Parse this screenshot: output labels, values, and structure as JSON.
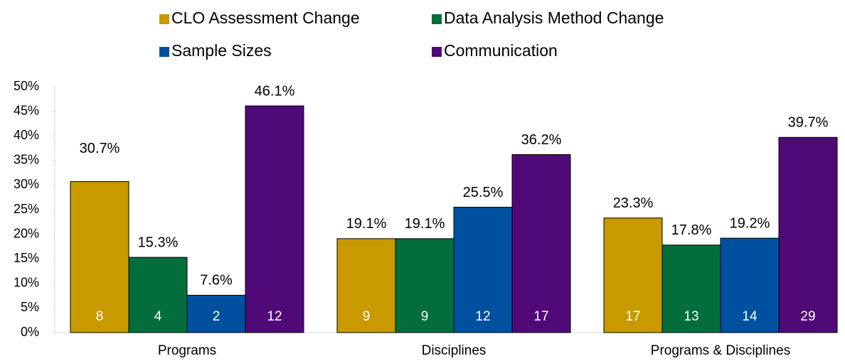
{
  "chart_data": {
    "type": "bar",
    "categories": [
      "Programs",
      "Disciplines",
      "Programs & Disciplines"
    ],
    "series": [
      {
        "name": "CLO Assessment Change",
        "color": "#c99a00",
        "values": [
          30.7,
          19.1,
          23.3
        ],
        "value_labels": [
          "30.7%",
          "19.1%",
          "23.3%"
        ],
        "counts": [
          8,
          9,
          17
        ]
      },
      {
        "name": "Data Analysis Method Change",
        "color": "#036e3b",
        "values": [
          15.3,
          19.1,
          17.8
        ],
        "value_labels": [
          "15.3%",
          "19.1%",
          "17.8%"
        ],
        "counts": [
          4,
          9,
          13
        ]
      },
      {
        "name": "Sample Sizes",
        "color": "#0050a0",
        "values": [
          7.6,
          25.5,
          19.2
        ],
        "value_labels": [
          "7.6%",
          "25.5%",
          "19.2%"
        ],
        "counts": [
          2,
          12,
          14
        ]
      },
      {
        "name": "Communication",
        "color": "#500a78",
        "values": [
          46.1,
          36.2,
          39.7
        ],
        "value_labels": [
          "46.1%",
          "36.2%",
          "39.7%"
        ],
        "counts": [
          12,
          17,
          29
        ]
      }
    ],
    "ylim": [
      0,
      50
    ],
    "yticks": [
      {
        "value": 0,
        "label": "0%"
      },
      {
        "value": 5,
        "label": "5%"
      },
      {
        "value": 10,
        "label": "10%"
      },
      {
        "value": 15,
        "label": "15%"
      },
      {
        "value": 20,
        "label": "20%"
      },
      {
        "value": 25,
        "label": "25%"
      },
      {
        "value": 30,
        "label": "30%"
      },
      {
        "value": 35,
        "label": "35%"
      },
      {
        "value": 40,
        "label": "40%"
      },
      {
        "value": 45,
        "label": "45%"
      },
      {
        "value": 50,
        "label": "50%"
      }
    ],
    "legend": "top",
    "grid": false
  }
}
